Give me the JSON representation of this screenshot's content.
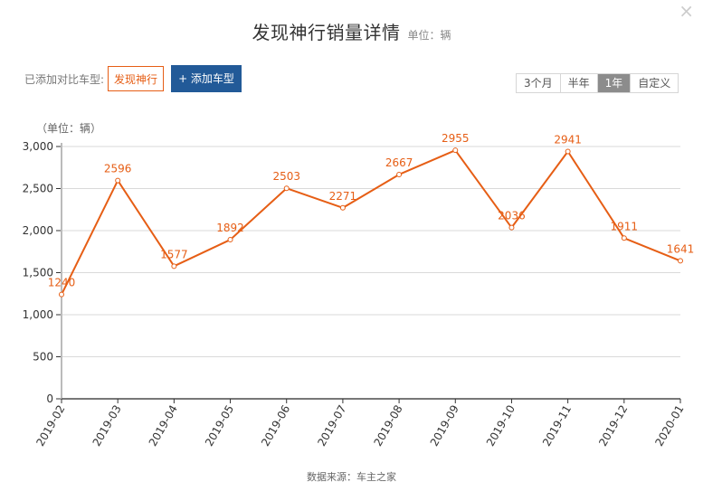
{
  "header": {
    "title": "发现神行销量详情",
    "unit": "单位：辆",
    "close_icon": "×"
  },
  "compare": {
    "label": "已添加对比车型:",
    "cars": [
      "发现神行"
    ],
    "add_button": "+ 添加车型"
  },
  "range": {
    "options": [
      "3个月",
      "半年",
      "1年",
      "自定义"
    ],
    "selected": "1年"
  },
  "footer": {
    "source": "数据来源：车主之家"
  },
  "colors": {
    "line": "#e65e15",
    "add_button_bg": "#225a98",
    "grid": "#d9d9d9",
    "axis": "#999999"
  },
  "chart_data": {
    "type": "line",
    "title": "发现神行销量详情",
    "xlabel": "",
    "ylabel": "（单位：辆）",
    "categories": [
      "2019-02",
      "2019-03",
      "2019-04",
      "2019-05",
      "2019-06",
      "2019-07",
      "2019-08",
      "2019-09",
      "2019-10",
      "2019-11",
      "2019-12",
      "2020-01"
    ],
    "series": [
      {
        "name": "发现神行",
        "values": [
          1240,
          2596,
          1577,
          1892,
          2503,
          2271,
          2667,
          2955,
          2036,
          2941,
          1911,
          1641
        ]
      }
    ],
    "yticks": [
      0,
      500,
      1000,
      1500,
      2000,
      2500,
      3000
    ],
    "ytick_labels": [
      "0",
      "500",
      "1,000",
      "1,500",
      "2,000",
      "2,500",
      "3,000"
    ],
    "ylim": [
      0,
      3000
    ],
    "grid": true,
    "legend": "none",
    "data_labels": true
  }
}
